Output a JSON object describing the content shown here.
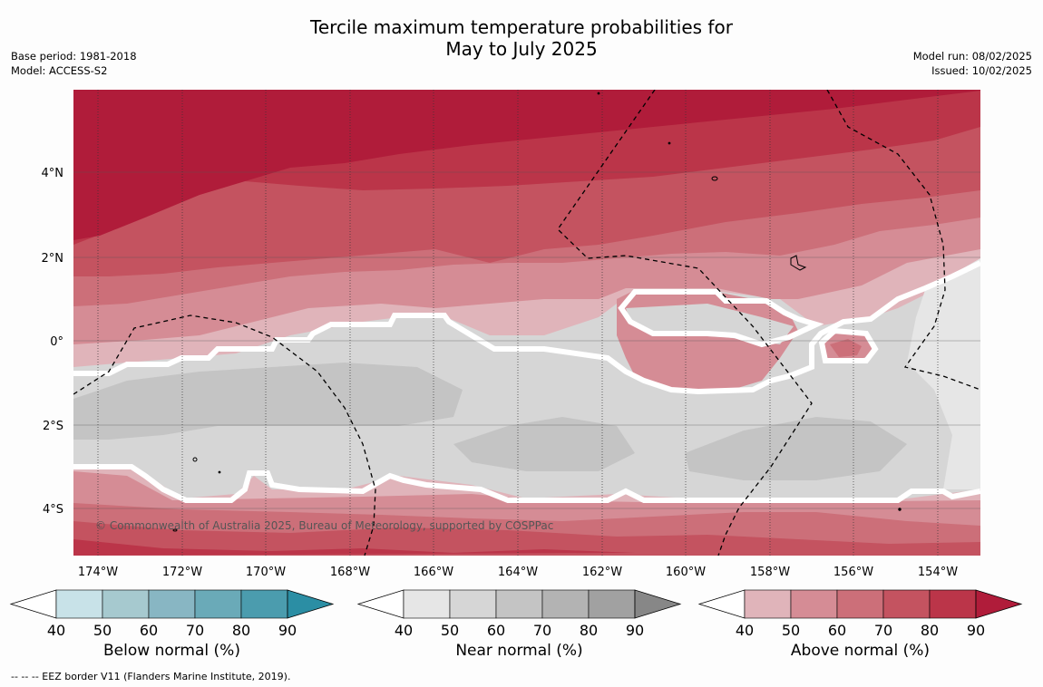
{
  "title": {
    "line1": "Tercile maximum temperature probabilities for",
    "line2": "May to July 2025"
  },
  "meta_left": {
    "base_period": "Base period: 1981-2018",
    "model": "Model: ACCESS-S2"
  },
  "meta_right": {
    "model_run": "Model run: 08/02/2025",
    "issued": "Issued: 10/02/2025"
  },
  "copyright": "© Commonwealth of Australia 2025, Bureau of Meteorology, supported by COSPPac",
  "axes": {
    "lon_labels": [
      "174°W",
      "172°W",
      "170°W",
      "168°W",
      "166°W",
      "164°W",
      "162°W",
      "160°W",
      "158°W",
      "156°W",
      "154°W"
    ],
    "lat_labels": [
      "4°N",
      "2°N",
      "0°",
      "2°S",
      "4°S"
    ]
  },
  "colorbars": [
    {
      "title": "Below normal (%)",
      "ticks": [
        "40",
        "50",
        "60",
        "70",
        "80",
        "90"
      ],
      "colors": [
        "#c8e2e8",
        "#a6c9cf",
        "#88b6c3",
        "#6aaab8",
        "#4b9cae",
        "#2b8ea4"
      ]
    },
    {
      "title": "Near normal (%)",
      "ticks": [
        "40",
        "50",
        "60",
        "70",
        "80",
        "90"
      ],
      "colors": [
        "#e6e6e6",
        "#d6d6d6",
        "#c4c4c4",
        "#b3b3b3",
        "#a1a1a1",
        "#878787"
      ]
    },
    {
      "title": "Above normal (%)",
      "ticks": [
        "40",
        "50",
        "60",
        "70",
        "80",
        "90"
      ],
      "colors": [
        "#e0b4ba",
        "#d58c95",
        "#cc6f79",
        "#c45360",
        "#bb3549",
        "#b01c3a"
      ]
    }
  ],
  "footnote": "--  --  -- EEZ border V11 (Flanders Marine Institute, 2019)."
}
